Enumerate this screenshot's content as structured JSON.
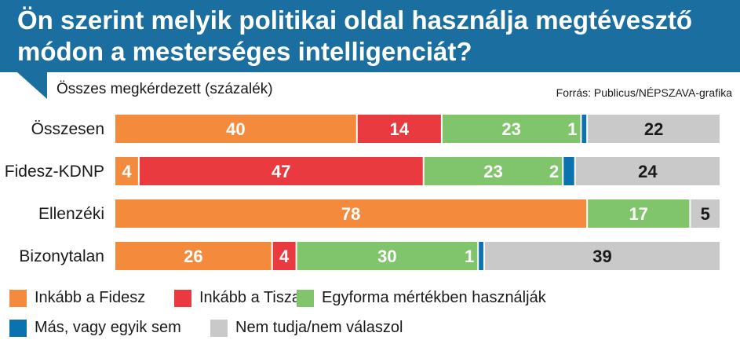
{
  "title": "Ön szerint melyik politikai oldal használja megtévesztő módon a mesterséges intelligenciát?",
  "subtitle": "Összes megkérdezett (százalék)",
  "source": "Forrás: Publicus/NÉPSZAVA-grafika",
  "colors": {
    "header": "#1a6fa0",
    "fidesz": "#f48a3c",
    "tisza": "#e83a3f",
    "egyforma": "#80c46b",
    "mas": "#0b72b0",
    "nemtudja": "#c9c9c9"
  },
  "chart_data": {
    "type": "bar",
    "orientation": "horizontal",
    "stacked": true,
    "title": "Ön szerint melyik politikai oldal használja megtévesztő módon a mesterséges intelligenciát?",
    "subtitle": "Összes megkérdezett (százalék)",
    "xlim": [
      0,
      100
    ],
    "categories": [
      "Összesen",
      "Fidesz-KDNP",
      "Ellenzéki",
      "Bizonytalan"
    ],
    "series": [
      {
        "name": "Inkább a Fidesz",
        "key": "fidesz",
        "values": [
          40,
          4,
          78,
          26
        ]
      },
      {
        "name": "Inkább a Tisza",
        "key": "tisza",
        "values": [
          14,
          47,
          0,
          4
        ]
      },
      {
        "name": "Egyforma mértékben használják",
        "key": "egyforma",
        "values": [
          23,
          23,
          17,
          30
        ]
      },
      {
        "name": "Más, vagy egyik sem",
        "key": "mas",
        "values": [
          1,
          2,
          0,
          1
        ]
      },
      {
        "name": "Nem tudja/nem válaszol",
        "key": "nemtudja",
        "values": [
          22,
          24,
          5,
          39
        ]
      }
    ],
    "labels": [
      [
        "40",
        "14",
        "23",
        "1",
        "22"
      ],
      [
        "4",
        "47",
        "23",
        "2",
        "24"
      ],
      [
        "78",
        "",
        "17",
        "",
        "5"
      ],
      [
        "26",
        "4",
        "30",
        "1",
        "39"
      ]
    ]
  }
}
